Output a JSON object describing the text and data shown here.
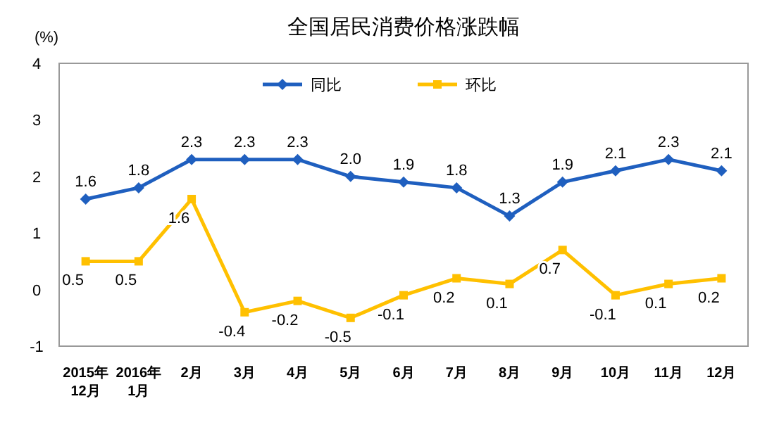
{
  "chart_data": {
    "type": "line",
    "title": "全国居民消费价格涨跌幅",
    "ylabel": "(%)",
    "categories": [
      "2015年\n12月",
      "2016年\n1月",
      "2月",
      "3月",
      "4月",
      "5月",
      "6月",
      "7月",
      "8月",
      "9月",
      "10月",
      "11月",
      "12月"
    ],
    "series": [
      {
        "name": "同比",
        "color": "#1f5fbf",
        "marker": "diamond",
        "values": [
          1.6,
          1.8,
          2.3,
          2.3,
          2.3,
          2.0,
          1.9,
          1.8,
          1.3,
          1.9,
          2.1,
          2.3,
          2.1
        ],
        "value_labels": [
          "1.6",
          "1.8",
          "2.3",
          "2.3",
          "2.3",
          "2.0",
          "1.9",
          "1.8",
          "1.3",
          "1.9",
          "2.1",
          "2.3",
          "2.1"
        ]
      },
      {
        "name": "环比",
        "color": "#ffc000",
        "marker": "square",
        "values": [
          0.5,
          0.5,
          1.6,
          -0.4,
          -0.2,
          -0.5,
          -0.1,
          0.2,
          0.1,
          0.7,
          -0.1,
          0.1,
          0.2
        ],
        "value_labels": [
          "0.5",
          "0.5",
          "1.6",
          "-0.4",
          "-0.2",
          "-0.5",
          "-0.1",
          "0.2",
          "0.1",
          "0.7",
          "-0.1",
          "0.1",
          "0.2"
        ]
      }
    ],
    "ylim": [
      -1,
      4
    ],
    "yticks": [
      -1,
      0,
      1,
      2,
      3,
      4
    ],
    "legend": "top",
    "grid": false
  }
}
